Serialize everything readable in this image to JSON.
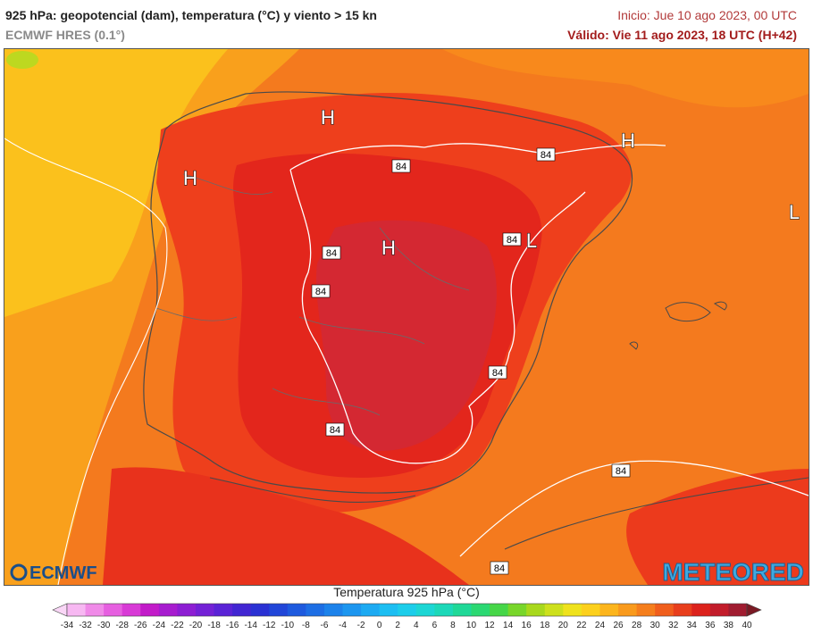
{
  "header": {
    "title": "925 hPa: geopotencial (dam), temperatura (°C) y viento > 15 kn",
    "model": "ECMWF HRES (0.1°)",
    "init": "Inicio: Jue 10 ago 2023, 00 UTC",
    "valid": "Válido: Vie 11 ago 2023, 18 UTC (H+42)"
  },
  "map": {
    "contour_labels": [
      "84",
      "84",
      "84",
      "84",
      "84",
      "84",
      "84",
      "84",
      "84"
    ],
    "pressure_centers": [
      "H",
      "H",
      "H",
      "H",
      "L",
      "L"
    ]
  },
  "logos": {
    "left": "ECMWF",
    "right": "METEORED"
  },
  "colorbar": {
    "title": "Temperatura 925 hPa (°C)",
    "ticks": [
      "-34",
      "-32",
      "-30",
      "-28",
      "-26",
      "-24",
      "-22",
      "-20",
      "-18",
      "-16",
      "-14",
      "-12",
      "-10",
      "-8",
      "-6",
      "-4",
      "-2",
      "0",
      "2",
      "4",
      "6",
      "8",
      "10",
      "12",
      "14",
      "16",
      "18",
      "20",
      "22",
      "24",
      "26",
      "28",
      "30",
      "32",
      "34",
      "36",
      "38",
      "40"
    ],
    "colors": [
      "#f7b8f2",
      "#f08ae8",
      "#e65fe0",
      "#d83ad6",
      "#c21bc9",
      "#a71ccf",
      "#8d1ed3",
      "#7321d6",
      "#5a23d6",
      "#4126d2",
      "#2a31d3",
      "#2146d8",
      "#1e5ade",
      "#1d6ee4",
      "#1c82ea",
      "#1c96ef",
      "#1caaf2",
      "#1cbef2",
      "#1ccdea",
      "#1cd6d4",
      "#1cd8b8",
      "#1fd897",
      "#2bd872",
      "#46d648",
      "#78d62a",
      "#a8d81c",
      "#cde01c",
      "#efe21c",
      "#fcd01c",
      "#fcb51c",
      "#f99a1c",
      "#f57e1c",
      "#f05e1c",
      "#e83e1c",
      "#dc221c",
      "#c21c2a",
      "#a01c30"
    ],
    "under_color": "#f9d6f6",
    "over_color": "#7a1a24"
  }
}
